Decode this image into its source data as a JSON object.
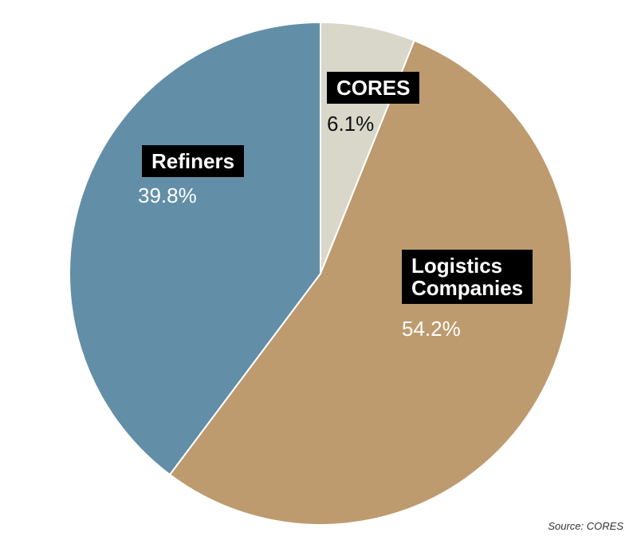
{
  "chart_data": {
    "type": "pie",
    "slices": [
      {
        "label": "CORES",
        "value": 6.1,
        "value_label": "6.1%",
        "color": "#d9d7ca"
      },
      {
        "label": "Logistics\nCompanies",
        "value": 54.2,
        "value_label": "54.2%",
        "color": "#bd9b6f"
      },
      {
        "label": "Refiners",
        "value": 39.8,
        "value_label": "39.8%",
        "color": "#628fa7"
      }
    ],
    "source": "Source: CORES"
  }
}
